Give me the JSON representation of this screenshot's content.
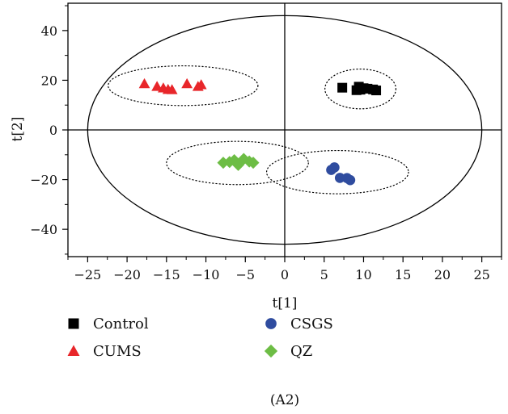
{
  "chart_data": {
    "type": "scatter",
    "title": "",
    "caption": "(A2)",
    "xlabel": "t[1]",
    "ylabel": "t[2]",
    "xlim": [
      -27.5,
      27.5
    ],
    "ylim": [
      -51,
      51
    ],
    "xticks": [
      -25,
      -20,
      -15,
      -10,
      -5,
      0,
      5,
      10,
      15,
      20,
      25
    ],
    "yticks": [
      -40,
      -20,
      0,
      20,
      40
    ],
    "xtick_labels": [
      "−25",
      "−20",
      "−15",
      "−10",
      "−5",
      "0",
      "5",
      "10",
      "15",
      "20",
      "25"
    ],
    "ytick_labels": [
      "−40",
      "−20",
      "0",
      "20",
      "40"
    ],
    "grid": false,
    "reference_lines": {
      "x": 0,
      "y": 0
    },
    "confidence_ellipse": {
      "cx": 0,
      "cy": 0,
      "rx": 25,
      "ry": 46
    },
    "legend": {
      "placement": "bottom",
      "columns": 2
    },
    "series": [
      {
        "name": "Control",
        "marker": "square",
        "color": "#000000",
        "group_ellipse": {
          "cx": 9.6,
          "cy": 16.5,
          "rx": 4.5,
          "ry": 8
        },
        "points": [
          {
            "x": 7.3,
            "y": 17
          },
          {
            "x": 9.4,
            "y": 17.4
          },
          {
            "x": 9.6,
            "y": 16.2
          },
          {
            "x": 10.0,
            "y": 16.8
          },
          {
            "x": 10.5,
            "y": 16.6
          },
          {
            "x": 11.2,
            "y": 16.3
          },
          {
            "x": 11.6,
            "y": 15.9
          },
          {
            "x": 9.1,
            "y": 16.0
          }
        ]
      },
      {
        "name": "CUMS",
        "marker": "triangle",
        "color": "#e8262a",
        "group_ellipse": {
          "cx": -12.9,
          "cy": 17.8,
          "rx": 9.5,
          "ry": 8
        },
        "points": [
          {
            "x": -17.8,
            "y": 18.6
          },
          {
            "x": -16.2,
            "y": 17.5
          },
          {
            "x": -15.4,
            "y": 16.9
          },
          {
            "x": -14.8,
            "y": 16.3
          },
          {
            "x": -14.3,
            "y": 16.2
          },
          {
            "x": -12.4,
            "y": 18.6
          },
          {
            "x": -11.0,
            "y": 17.5
          },
          {
            "x": -10.6,
            "y": 18.2
          }
        ]
      },
      {
        "name": "CSGS",
        "marker": "circle",
        "color": "#2f4c9f",
        "group_ellipse": {
          "cx": 6.7,
          "cy": -17,
          "rx": 9,
          "ry": 8.7
        },
        "points": [
          {
            "x": 5.9,
            "y": -16.1
          },
          {
            "x": 6.3,
            "y": -15.1
          },
          {
            "x": 7.0,
            "y": -19.3
          },
          {
            "x": 7.9,
            "y": -19.4
          },
          {
            "x": 8.3,
            "y": -20.2
          }
        ]
      },
      {
        "name": "QZ",
        "marker": "diamond",
        "color": "#6dbd45",
        "group_ellipse": {
          "cx": -6.0,
          "cy": -13.3,
          "rx": 9,
          "ry": 8.7
        },
        "points": [
          {
            "x": -7.8,
            "y": -13.2
          },
          {
            "x": -7.0,
            "y": -12.9
          },
          {
            "x": -6.4,
            "y": -12.2
          },
          {
            "x": -5.9,
            "y": -14.1
          },
          {
            "x": -5.2,
            "y": -11.7
          },
          {
            "x": -4.5,
            "y": -12.7
          },
          {
            "x": -4.0,
            "y": -13.2
          }
        ]
      }
    ]
  }
}
